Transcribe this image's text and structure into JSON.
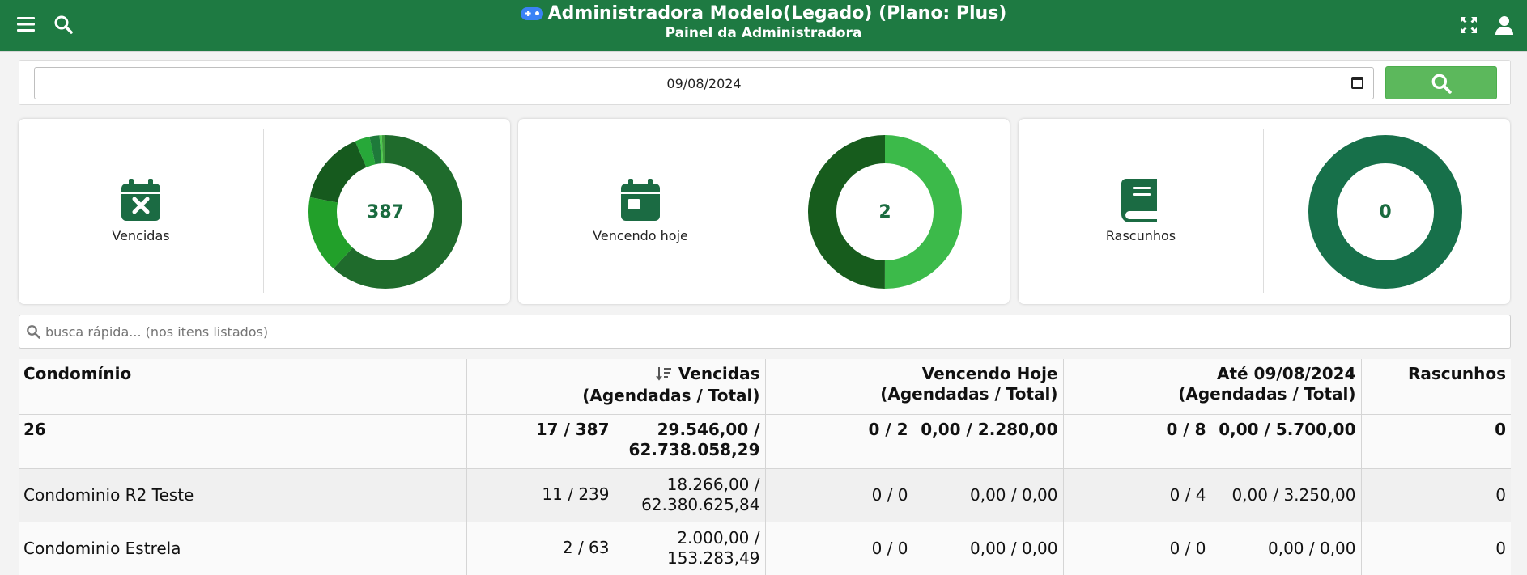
{
  "header": {
    "title": "Administradora Modelo(Legado) (Plano: Plus)",
    "subtitle": "Painel da Administradora",
    "icons": [
      "menu-icon",
      "search-icon",
      "gamepad-icon",
      "fullscreen-icon",
      "user-icon"
    ]
  },
  "filter": {
    "date_value": "09/08/2024"
  },
  "cards": [
    {
      "label": "Vencidas",
      "icon": "calendar-x-icon",
      "total": "387",
      "segments": [
        {
          "value": 239,
          "color": "#1f6b2c"
        },
        {
          "value": 63,
          "color": "#22a02a"
        },
        {
          "value": 60,
          "color": "#165a1e"
        },
        {
          "value": 12,
          "color": "#27a839"
        },
        {
          "value": 8,
          "color": "#1e7a3a"
        },
        {
          "value": 2,
          "color": "#4cc84c"
        },
        {
          "value": 3,
          "color": "#3c9a3c"
        }
      ]
    },
    {
      "label": "Vencendo hoje",
      "icon": "calendar-day-icon",
      "total": "2",
      "segments": [
        {
          "value": 1,
          "color": "#3cba4a"
        },
        {
          "value": 1,
          "color": "#175c1d"
        }
      ]
    },
    {
      "label": "Rascunhos",
      "icon": "book-icon",
      "total": "0",
      "segments": [
        {
          "value": 1,
          "color": "#17704a"
        }
      ]
    }
  ],
  "quick_search": {
    "placeholder": "busca rápida... (nos itens listados)"
  },
  "table": {
    "headers": {
      "condominio": "Condomínio",
      "vencidas_1": "Vencidas",
      "vencidas_2": "(Agendadas / Total)",
      "hoje_1": "Vencendo Hoje",
      "hoje_2": "(Agendadas / Total)",
      "ate_1": "Até 09/08/2024",
      "ate_2": "(Agendadas / Total)",
      "rascunhos": "Rascunhos"
    },
    "total": {
      "name": "26",
      "v_count": "17 / 387",
      "v_value_1": "29.546,00 /",
      "v_value_2": "62.738.058,29",
      "h_count": "0 / 2",
      "h_value": "0,00 / 2.280,00",
      "a_count": "0 / 8",
      "a_value": "0,00 / 5.700,00",
      "rascunhos": "0"
    },
    "rows": [
      {
        "name": "Condominio R2 Teste",
        "v_count": "11 / 239",
        "v_value_1": "18.266,00 /",
        "v_value_2": "62.380.625,84",
        "h_count": "0 / 0",
        "h_value": "0,00 / 0,00",
        "a_count": "0 / 4",
        "a_value": "0,00 / 3.250,00",
        "rascunhos": "0"
      },
      {
        "name": "Condominio Estrela",
        "v_count": "2 / 63",
        "v_value_1": "2.000,00 /",
        "v_value_2": "153.283,49",
        "h_count": "0 / 0",
        "h_value": "0,00 / 0,00",
        "a_count": "0 / 0",
        "a_value": "0,00 / 0,00",
        "rascunhos": "0"
      }
    ]
  }
}
